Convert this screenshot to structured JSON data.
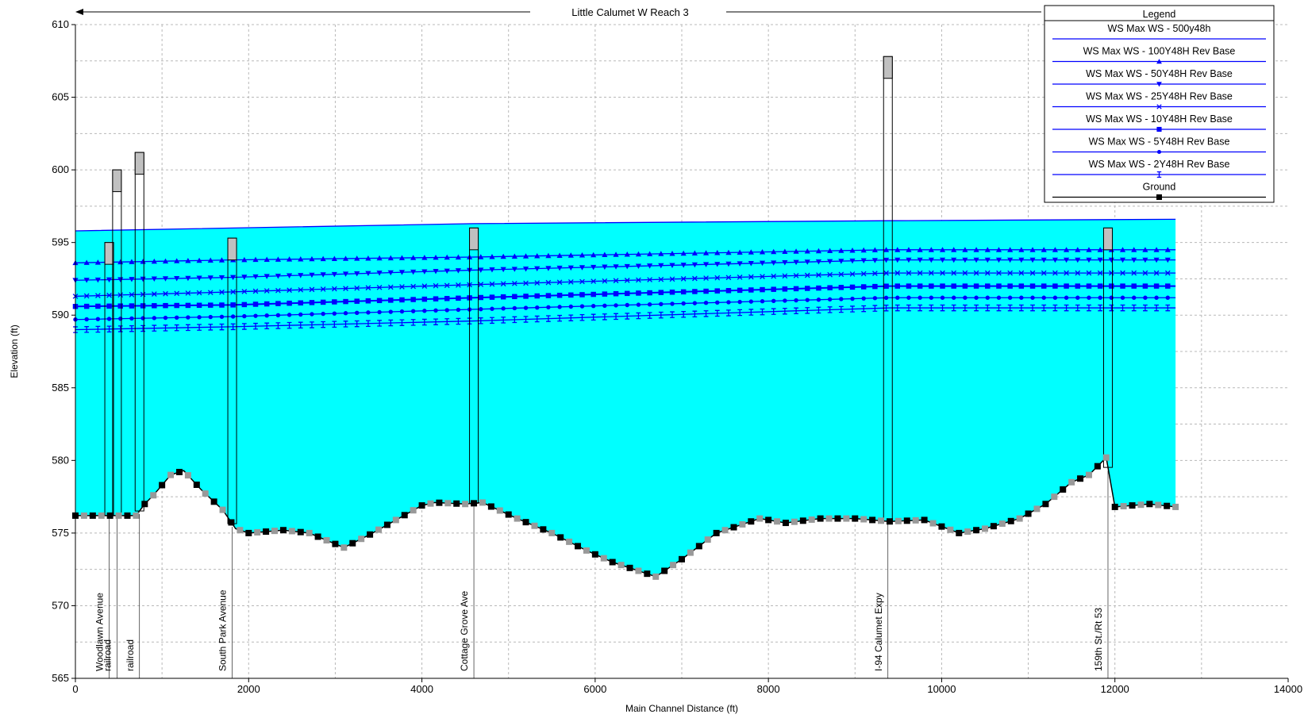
{
  "chart_data": {
    "type": "line",
    "title": "Little Calumet W Reach 3",
    "xlabel": "Main Channel Distance (ft)",
    "ylabel": "Elevation (ft)",
    "xlim": [
      0,
      14000
    ],
    "ylim": [
      565,
      610
    ],
    "x_ticks": [
      "0",
      "2000",
      "4000",
      "6000",
      "8000",
      "10000",
      "12000",
      "14000"
    ],
    "y_ticks": [
      "565",
      "570",
      "575",
      "580",
      "585",
      "590",
      "595",
      "600",
      "605",
      "610"
    ],
    "grid": true,
    "legend_position": "top-right",
    "legend_title": "Legend",
    "colors": {
      "water": "#00ffff",
      "ws_line": "#0000ff",
      "ground": "#000000",
      "ground_alt": "#999999",
      "structure": "#c0c0c0"
    },
    "series": [
      {
        "name": "WS  Max WS - 500y48h",
        "marker": "none",
        "x": [
          0,
          4600,
          9400,
          12700
        ],
        "y": [
          595.8,
          596.3,
          596.5,
          596.6
        ]
      },
      {
        "name": "WS  Max WS - 100Y48H Rev Base",
        "marker": "triangle-up",
        "x": [
          0,
          1800,
          4600,
          9400,
          12700
        ],
        "y": [
          593.6,
          593.8,
          594.0,
          594.5,
          594.5
        ]
      },
      {
        "name": "WS  Max WS - 50Y48H Rev Base",
        "marker": "triangle-down",
        "x": [
          0,
          1800,
          4600,
          9400,
          12700
        ],
        "y": [
          592.4,
          592.6,
          593.1,
          593.8,
          593.8
        ]
      },
      {
        "name": "WS  Max WS - 25Y48H Rev Base",
        "marker": "x",
        "x": [
          0,
          1800,
          4600,
          9400,
          12700
        ],
        "y": [
          591.3,
          591.6,
          592.1,
          592.9,
          592.9
        ]
      },
      {
        "name": "WS  Max WS - 10Y48H Rev Base",
        "marker": "square",
        "x": [
          0,
          1800,
          4600,
          9400,
          12700
        ],
        "y": [
          590.6,
          590.7,
          591.2,
          592.0,
          592.0
        ]
      },
      {
        "name": "WS  Max WS - 5Y48H Rev Base",
        "marker": "circle",
        "x": [
          0,
          1800,
          4600,
          9400,
          12700
        ],
        "y": [
          589.7,
          589.9,
          590.4,
          591.2,
          591.2
        ]
      },
      {
        "name": "WS  Max WS - 2Y48H Rev Base",
        "marker": "hourglass",
        "x": [
          0,
          1800,
          4600,
          9400,
          12700
        ],
        "y": [
          589.0,
          589.2,
          589.6,
          590.5,
          590.5
        ]
      },
      {
        "name": "Ground",
        "marker": "square",
        "x": [
          0,
          400,
          700,
          800,
          900,
          1100,
          1250,
          1450,
          1700,
          1850,
          2000,
          2400,
          2700,
          3100,
          3400,
          3700,
          4000,
          4150,
          4500,
          4700,
          5100,
          5500,
          5900,
          6200,
          6700,
          7000,
          7400,
          7900,
          8200,
          8600,
          9000,
          9400,
          9800,
          10200,
          10500,
          10900,
          11200,
          11500,
          11700,
          11900,
          12000,
          12400,
          12700
        ],
        "y": [
          576.2,
          576.2,
          576.2,
          577.0,
          577.6,
          579.0,
          579.3,
          578.0,
          576.6,
          575.3,
          575.0,
          575.2,
          575.0,
          574.0,
          574.9,
          575.9,
          576.9,
          577.1,
          577.0,
          577.1,
          576.0,
          575.0,
          573.8,
          573.0,
          572.0,
          573.2,
          575.0,
          576.0,
          575.7,
          576.0,
          576.0,
          575.8,
          575.9,
          575.0,
          575.3,
          576.0,
          577.0,
          578.5,
          579.0,
          580.2,
          576.8,
          577.0,
          576.8
        ]
      }
    ],
    "structures": [
      {
        "label": "Woodlawn Avenue",
        "x": 390,
        "top": 595.0
      },
      {
        "label": "railroad",
        "x": 480,
        "top": 600.0
      },
      {
        "label": "railroad",
        "x": 740,
        "top": 601.2
      },
      {
        "label": "South Park Avenue",
        "x": 1810,
        "top": 595.3
      },
      {
        "label": "Cottage Grove Ave",
        "x": 4600,
        "top": 596.0
      },
      {
        "label": "I-94 Calumet Expy",
        "x": 9380,
        "top": 607.8
      },
      {
        "label": "159th St./Rt 53",
        "x": 11920,
        "top": 596.0
      }
    ]
  }
}
